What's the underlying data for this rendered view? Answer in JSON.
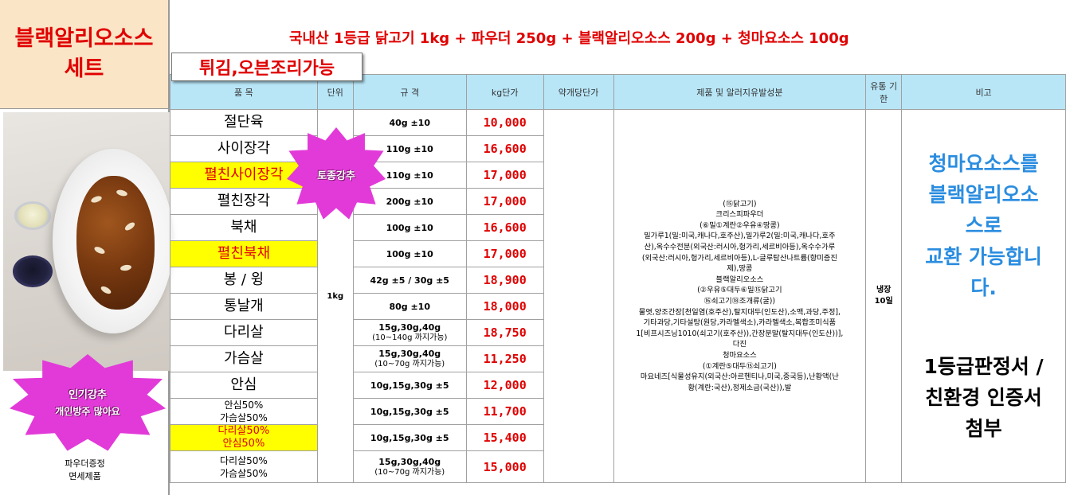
{
  "title": {
    "line1": "블랙알리오소스",
    "line2": "세트"
  },
  "banner": "국내산 1등급 닭고기 1kg + 파우더 250g + 블랙알리오소스 200g + 청마요소스 100g",
  "cooking_badge": "튀김,오븐조리가능",
  "headers": {
    "item": "품  목",
    "unit": "단위",
    "spec": "규  격",
    "price_kg": "kg단가",
    "price_drug": "약개당단가",
    "ingredients": "제품 및 알러지유발성분",
    "shelf": "유통 기한",
    "note": "비고"
  },
  "unit_value": "1kg",
  "rows": [
    {
      "item": "절단육",
      "spec": "40g ±10",
      "price": "10,000"
    },
    {
      "item": "사이장각",
      "spec": "110g ±10",
      "price": "16,600"
    },
    {
      "item": "펼친사이장각",
      "spec": "110g ±10",
      "price": "17,000"
    },
    {
      "item": "펼친장각",
      "spec": "200g ±10",
      "price": "17,000"
    },
    {
      "item": "북채",
      "spec": "100g ±10",
      "price": "16,600"
    },
    {
      "item": "펼친북채",
      "spec": "100g ±10",
      "price": "17,000"
    },
    {
      "item": "봉 / 윙",
      "spec": "42g ±5 / 30g ±5",
      "price": "18,900"
    },
    {
      "item": "통날개",
      "spec": "80g ±10",
      "price": "18,000"
    },
    {
      "item": "다리살",
      "spec": "15g,30g,40g",
      "spec2": "(10~140g 까지가능)",
      "price": "18,750"
    },
    {
      "item": "가슴살",
      "spec": "15g,30g,40g",
      "spec2": "(10~70g 까지가능)",
      "price": "11,250"
    },
    {
      "item": "안심",
      "spec": "10g,15g,30g ±5",
      "price": "12,000"
    },
    {
      "item": "안심50%",
      "item2": "가슴살50%",
      "spec": "10g,15g,30g ±5",
      "price": "11,700"
    },
    {
      "item": "다리살50%",
      "item2": "안심50%",
      "spec": "10g,15g,30g ±5",
      "price": "15,400"
    },
    {
      "item": "다리살50%",
      "item2": "가슴살50%",
      "spec": "15g,30g,40g",
      "spec2": "(10~70g 까지가능)",
      "price": "15,000"
    }
  ],
  "ingredients": [
    "(⑮닭고기)",
    "크리스피파우더",
    "(⑥밀①계란②우유④땅콩)",
    "밀가루1(밀:미국,캐나다,호주산),밀가루2(밀:미국,캐나다,호주",
    "산),옥수수전분(외국산:러시아,헝가리,세르비아등),옥수수가루",
    "(외국산:러시아,헝가리,세르비아등),L-글루탐산나트륨(향미증진",
    "제),땅콩",
    "블랙알리오소스",
    "(②우유⑤대두⑥밀⑮닭고기",
    "⑯쇠고기⑱조개류(굴))",
    "물엿,양조간장[천일염(호주산),탈지대두(인도산),소맥,과당,주정],",
    "기타과당,기타설탕(원당,카라멜색소),카라멜색소,복합조미식품",
    "1[비프시즈닝1010(쇠고기(호주산)),간장분말(탈지대두(인도산))],",
    "다진",
    "청마요소스",
    "(①계란⑤대두⑮쇠고기)",
    "마요네즈[식물성유지(외국산:아르헨티나,미국,중국등),난황액(난",
    "황(계란:국산),정제소금(국산)),발"
  ],
  "shelf": {
    "line1": "냉장",
    "line2": "10일"
  },
  "note": {
    "blue_lines": [
      "청마요소스를",
      "블랙알리오소",
      "스로",
      "교환 가능합니",
      "다."
    ],
    "black_lines": [
      "1등급판정서 /",
      "친환경 인증서",
      "첨부"
    ]
  },
  "stickers": {
    "top": "토종강추",
    "bottom_line1": "인기강추",
    "bottom_line2": "개인방주 많아요"
  },
  "footer": {
    "line1": "파우더증정",
    "line2": "면세제품"
  },
  "colors": {
    "red": "#e00000",
    "header_blue": "#b8e6f7",
    "title_bg": "#fbe5c7",
    "highlight_yellow": "#ffff00",
    "note_blue": "#2a8de0",
    "sticker_magenta": "#e23ad8"
  }
}
